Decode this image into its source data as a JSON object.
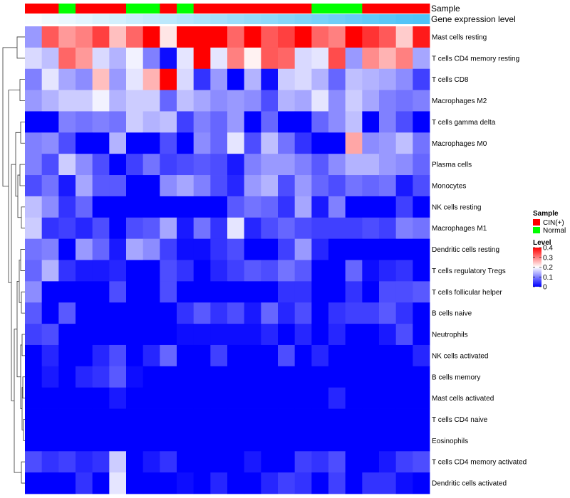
{
  "chart_data": {
    "type": "heatmap",
    "title": "",
    "n_columns": 24,
    "annotation_tracks": [
      {
        "name": "Sample",
        "values": [
          "CIN(+)",
          "CIN(+)",
          "Normal",
          "CIN(+)",
          "CIN(+)",
          "CIN(+)",
          "Normal",
          "Normal",
          "CIN(+)",
          "Normal",
          "CIN(+)",
          "CIN(+)",
          "CIN(+)",
          "CIN(+)",
          "CIN(+)",
          "CIN(+)",
          "CIN(+)",
          "Normal",
          "Normal",
          "Normal",
          "CIN(+)",
          "CIN(+)",
          "CIN(+)",
          "CIN(+)"
        ]
      },
      {
        "name": "Gene expression level",
        "values": [
          0.03,
          0.08,
          0.12,
          0.16,
          0.21,
          0.25,
          0.3,
          0.34,
          0.38,
          0.43,
          0.47,
          0.51,
          0.56,
          0.6,
          0.64,
          0.69,
          0.73,
          0.77,
          0.82,
          0.86,
          0.9,
          0.94,
          0.98,
          1.0
        ]
      }
    ],
    "rows": [
      {
        "name": "Mast cells resting",
        "values": [
          0.12,
          0.33,
          0.28,
          0.3,
          0.35,
          0.25,
          0.32,
          0.4,
          0.22,
          0.4,
          0.4,
          0.4,
          0.32,
          0.4,
          0.33,
          0.35,
          0.4,
          0.32,
          0.3,
          0.4,
          0.36,
          0.33,
          0.24,
          0.38
        ]
      },
      {
        "name": "T cells CD4 memory resting",
        "values": [
          0.17,
          0.15,
          0.32,
          0.28,
          0.17,
          0.14,
          0.19,
          0.1,
          0.01,
          0.18,
          0.4,
          0.18,
          0.3,
          0.21,
          0.33,
          0.32,
          0.17,
          0.18,
          0.34,
          0.12,
          0.29,
          0.26,
          0.3,
          0.13
        ]
      },
      {
        "name": "T cells CD8",
        "values": [
          0.1,
          0.18,
          0.13,
          0.11,
          0.25,
          0.12,
          0.18,
          0.26,
          0.4,
          0.17,
          0.04,
          0.12,
          0.0,
          0.14,
          0.01,
          0.16,
          0.17,
          0.14,
          0.08,
          0.15,
          0.14,
          0.13,
          0.11,
          0.05
        ]
      },
      {
        "name": "Macrophages M2",
        "values": [
          0.12,
          0.14,
          0.16,
          0.16,
          0.19,
          0.14,
          0.16,
          0.16,
          0.08,
          0.15,
          0.13,
          0.11,
          0.12,
          0.11,
          0.06,
          0.14,
          0.13,
          0.18,
          0.11,
          0.16,
          0.13,
          0.1,
          0.09,
          0.1
        ]
      },
      {
        "name": "T cells gamma delta",
        "values": [
          0.0,
          0.0,
          0.1,
          0.09,
          0.1,
          0.09,
          0.16,
          0.14,
          0.15,
          0.05,
          0.1,
          0.08,
          0.12,
          0.0,
          0.08,
          0.0,
          0.0,
          0.08,
          0.11,
          0.15,
          0.0,
          0.1,
          0.06,
          0.0
        ]
      },
      {
        "name": "Macrophages M0",
        "values": [
          0.1,
          0.11,
          0.06,
          0.0,
          0.0,
          0.14,
          0.0,
          0.0,
          0.06,
          0.0,
          0.11,
          0.08,
          0.18,
          0.06,
          0.15,
          0.09,
          0.04,
          0.0,
          0.0,
          0.27,
          0.11,
          0.12,
          0.15,
          0.09
        ]
      },
      {
        "name": "Plasma cells",
        "values": [
          0.1,
          0.06,
          0.16,
          0.11,
          0.06,
          0.0,
          0.05,
          0.09,
          0.05,
          0.06,
          0.07,
          0.06,
          0.02,
          0.1,
          0.12,
          0.12,
          0.1,
          0.07,
          0.11,
          0.14,
          0.14,
          0.12,
          0.11,
          0.08
        ]
      },
      {
        "name": "Monocytes",
        "values": [
          0.06,
          0.09,
          0.02,
          0.13,
          0.07,
          0.07,
          0.0,
          0.0,
          0.11,
          0.13,
          0.1,
          0.06,
          0.03,
          0.12,
          0.14,
          0.06,
          0.12,
          0.08,
          0.06,
          0.09,
          0.08,
          0.09,
          0.02,
          0.06
        ]
      },
      {
        "name": "NK cells resting",
        "values": [
          0.15,
          0.11,
          0.04,
          0.08,
          0.0,
          0.0,
          0.0,
          0.0,
          0.0,
          0.0,
          0.0,
          0.0,
          0.07,
          0.09,
          0.08,
          0.04,
          0.13,
          0.02,
          0.1,
          0.0,
          0.0,
          0.0,
          0.05,
          0.0
        ]
      },
      {
        "name": "Macrophages M1",
        "values": [
          0.16,
          0.04,
          0.05,
          0.03,
          0.06,
          0.0,
          0.06,
          0.07,
          0.13,
          0.02,
          0.09,
          0.04,
          0.18,
          0.03,
          0.06,
          0.08,
          0.06,
          0.05,
          0.05,
          0.05,
          0.06,
          0.05,
          0.1,
          0.09
        ]
      },
      {
        "name": "Dendritic cells resting",
        "values": [
          0.09,
          0.1,
          0.0,
          0.12,
          0.08,
          0.02,
          0.13,
          0.11,
          0.05,
          0.01,
          0.01,
          0.04,
          0.06,
          0.0,
          0.0,
          0.05,
          0.12,
          0.03,
          0.0,
          0.0,
          0.0,
          0.0,
          0.0,
          0.0
        ]
      },
      {
        "name": "T cells regulatory  Tregs",
        "values": [
          0.08,
          0.14,
          0.04,
          0.02,
          0.02,
          0.03,
          0.0,
          0.0,
          0.06,
          0.04,
          0.0,
          0.03,
          0.05,
          0.07,
          0.06,
          0.09,
          0.07,
          0.0,
          0.0,
          0.08,
          0.01,
          0.03,
          0.04,
          0.0
        ]
      },
      {
        "name": "T cells follicular helper",
        "values": [
          0.11,
          0.0,
          0.0,
          0.0,
          0.0,
          0.06,
          0.0,
          0.0,
          0.06,
          0.0,
          0.0,
          0.0,
          0.0,
          0.0,
          0.0,
          0.04,
          0.04,
          0.0,
          0.0,
          0.04,
          0.0,
          0.06,
          0.06,
          0.07
        ]
      },
      {
        "name": "B cells naive",
        "values": [
          0.07,
          0.0,
          0.07,
          0.0,
          0.0,
          0.0,
          0.0,
          0.0,
          0.0,
          0.04,
          0.07,
          0.04,
          0.06,
          0.02,
          0.08,
          0.03,
          0.06,
          0.0,
          0.04,
          0.05,
          0.05,
          0.07,
          0.04,
          0.0
        ]
      },
      {
        "name": "Neutrophils",
        "values": [
          0.05,
          0.06,
          0.0,
          0.0,
          0.0,
          0.0,
          0.0,
          0.0,
          0.0,
          0.01,
          0.01,
          0.01,
          0.01,
          0.01,
          0.03,
          0.0,
          0.03,
          0.0,
          0.03,
          0.0,
          0.0,
          0.02,
          0.06,
          0.0
        ]
      },
      {
        "name": "NK cells activated",
        "values": [
          0.0,
          0.03,
          0.0,
          0.0,
          0.03,
          0.06,
          0.0,
          0.03,
          0.08,
          0.0,
          0.0,
          0.05,
          0.0,
          0.0,
          0.0,
          0.06,
          0.0,
          0.03,
          0.0,
          0.0,
          0.0,
          0.0,
          0.0,
          0.03
        ]
      },
      {
        "name": "B cells memory",
        "values": [
          0.0,
          0.02,
          0.0,
          0.03,
          0.04,
          0.07,
          0.01,
          0.0,
          0.0,
          0.0,
          0.0,
          0.0,
          0.0,
          0.0,
          0.0,
          0.0,
          0.0,
          0.0,
          0.0,
          0.0,
          0.0,
          0.0,
          0.0,
          0.0
        ]
      },
      {
        "name": "Mast cells activated",
        "values": [
          0.0,
          0.0,
          0.0,
          0.0,
          0.0,
          0.02,
          0.0,
          0.0,
          0.0,
          0.0,
          0.0,
          0.0,
          0.0,
          0.0,
          0.0,
          0.0,
          0.0,
          0.0,
          0.03,
          0.0,
          0.0,
          0.0,
          0.0,
          0.0
        ]
      },
      {
        "name": "T cells CD4 naive",
        "values": [
          0.0,
          0.0,
          0.0,
          0.0,
          0.0,
          0.0,
          0.0,
          0.0,
          0.0,
          0.0,
          0.0,
          0.0,
          0.0,
          0.0,
          0.0,
          0.0,
          0.0,
          0.0,
          0.0,
          0.0,
          0.0,
          0.0,
          0.0,
          0.0
        ]
      },
      {
        "name": "Eosinophils",
        "values": [
          0.0,
          0.0,
          0.0,
          0.0,
          0.0,
          0.0,
          0.0,
          0.0,
          0.0,
          0.0,
          0.0,
          0.0,
          0.0,
          0.0,
          0.0,
          0.0,
          0.0,
          0.0,
          0.0,
          0.0,
          0.0,
          0.0,
          0.0,
          0.0
        ]
      },
      {
        "name": "T cells CD4 memory activated",
        "values": [
          0.06,
          0.04,
          0.05,
          0.03,
          0.04,
          0.16,
          0.0,
          0.02,
          0.04,
          0.0,
          0.0,
          0.0,
          0.0,
          0.02,
          0.0,
          0.0,
          0.05,
          0.04,
          0.06,
          0.0,
          0.0,
          0.02,
          0.05,
          0.06
        ]
      },
      {
        "name": "Dendritic cells activated",
        "values": [
          0.0,
          0.0,
          0.0,
          0.04,
          0.0,
          0.18,
          0.0,
          0.0,
          0.0,
          0.01,
          0.0,
          0.03,
          0.0,
          0.0,
          0.03,
          0.05,
          0.04,
          0.0,
          0.05,
          0.0,
          0.04,
          0.04,
          0.01,
          0.0
        ]
      }
    ],
    "row_dendrogram": true,
    "color_scale": {
      "type": "diverging",
      "domain": [
        0,
        0.2,
        0.4
      ],
      "colors": [
        "#0000ff",
        "#ffffff",
        "#ff0000"
      ]
    },
    "legends": {
      "sample": {
        "title": "Sample",
        "entries": [
          {
            "label": "CIN(+)",
            "color": "#ff0000"
          },
          {
            "label": "Normal",
            "color": "#00ff00"
          }
        ]
      },
      "level": {
        "title": "Level",
        "ticks": [
          0.4,
          0.3,
          0.2,
          0.1,
          0
        ],
        "tick_labels": [
          "0.4",
          "0.3",
          "0.2",
          "0.1",
          "0"
        ]
      }
    },
    "expression_track_colors": [
      "#ffffff",
      "#4fc3f7"
    ]
  }
}
